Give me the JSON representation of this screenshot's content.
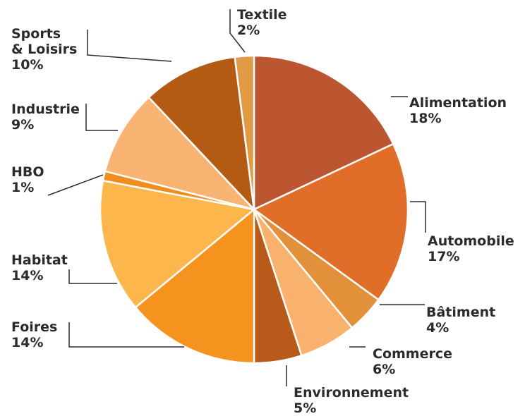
{
  "chart_data": {
    "type": "pie",
    "start": "top",
    "direction": "clockwise",
    "slices": [
      {
        "label": "Alimentation",
        "value_label": "18%",
        "value": 18,
        "color": "#BB5631"
      },
      {
        "label": "Automobile",
        "value_label": "17%",
        "value": 17,
        "color": "#E06D28"
      },
      {
        "label": "Bâtiment",
        "value_label": "4%",
        "value": 4,
        "color": "#E2913A"
      },
      {
        "label": "Commerce",
        "value_label": "6%",
        "value": 6,
        "color": "#F8B26E"
      },
      {
        "label": "Environnement",
        "value_label": "5%",
        "value": 5,
        "color": "#B85B1A"
      },
      {
        "label": "Foires",
        "value_label": "14%",
        "value": 14,
        "color": "#F6931F"
      },
      {
        "label": "Habitat",
        "value_label": "14%",
        "value": 14,
        "color": "#FCB64B"
      },
      {
        "label": "HBO",
        "value_label": "1%",
        "value": 1,
        "color": "#F28C1E"
      },
      {
        "label": "Industrie",
        "value_label": "9%",
        "value": 9,
        "color": "#F9B473"
      },
      {
        "label": "Sports\n& Loisirs",
        "value_label": "10%",
        "value": 10,
        "color": "#B35B12"
      },
      {
        "label": "Textile",
        "value_label": "2%",
        "value": 2,
        "color": "#E39A45"
      }
    ]
  }
}
